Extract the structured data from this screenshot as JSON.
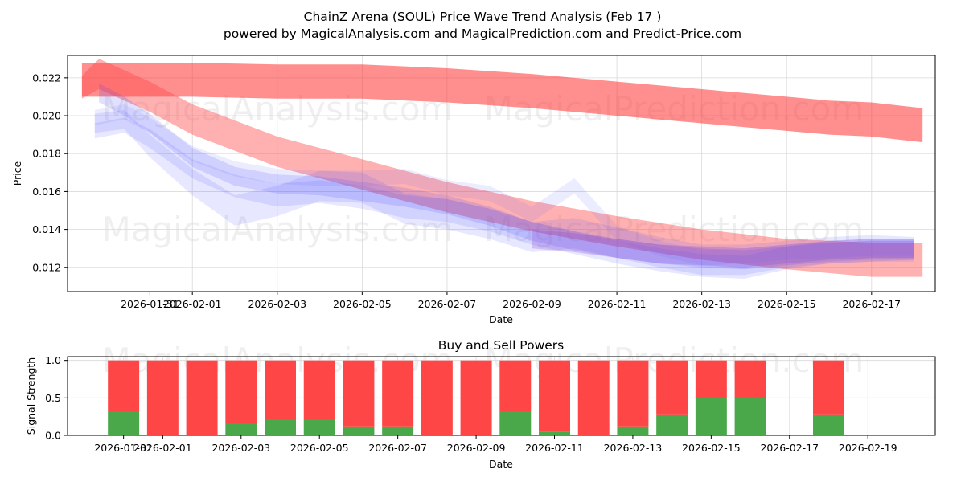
{
  "chart_data": [
    {
      "type": "area",
      "title": "ChainZ Arena (SOUL) Price Wave Trend Analysis (Feb 17 )",
      "subtitle": "powered by MagicalAnalysis.com and MagicalPrediction.com and Predict-Price.com",
      "xlabel": "Date",
      "ylabel": "Price",
      "ylim": [
        0.01072,
        0.02318
      ],
      "yticks": [
        0.012,
        0.014,
        0.016,
        0.018,
        0.02,
        0.022
      ],
      "ytick_labels": [
        "0.012",
        "0.014",
        "0.016",
        "0.018",
        "0.020",
        "0.022"
      ],
      "xticks": [
        0,
        1,
        3,
        5,
        7,
        9,
        11,
        13,
        15,
        17
      ],
      "xtick_labels": [
        "2026-01-31",
        "2026-02-01",
        "2026-02-03",
        "2026-02-05",
        "2026-02-07",
        "2026-02-09",
        "2026-02-11",
        "2026-02-13",
        "2026-02-15",
        "2026-02-17"
      ],
      "xlim": [
        -1.94,
        18.5
      ],
      "grid": true,
      "watermarks": [
        "MagicalAnalysis.com",
        "MagicalPrediction.com",
        "MagicalAnalysis.com",
        "MagicalPrediction.com"
      ],
      "bands": [
        {
          "name": "red-upper",
          "color": "#ff3333",
          "opacity": 0.55,
          "x": [
            -1.6,
            0,
            1,
            3,
            5,
            7,
            9,
            11,
            13,
            15,
            16,
            17,
            18.2
          ],
          "center": [
            0.0219,
            0.0219,
            0.0219,
            0.0218,
            0.0218,
            0.0216,
            0.0213,
            0.0209,
            0.0205,
            0.0201,
            0.0199,
            0.0198,
            0.0195
          ],
          "half": [
            0.0009,
            0.0009,
            0.0009,
            0.0009,
            0.0009,
            0.0009,
            0.0009,
            0.0009,
            0.0009,
            0.0009,
            0.0009,
            0.0009,
            0.0009
          ]
        },
        {
          "name": "red-lower",
          "color": "#ff4444",
          "opacity": 0.42,
          "x": [
            -1.6,
            -1.2,
            0,
            1,
            3,
            5,
            7,
            9,
            11,
            13,
            15,
            17,
            18.2
          ],
          "center": [
            0.0215,
            0.0222,
            0.021,
            0.0198,
            0.0181,
            0.0169,
            0.0157,
            0.0147,
            0.0139,
            0.0132,
            0.0127,
            0.0124,
            0.0124
          ],
          "half": [
            0.0006,
            0.0008,
            0.0008,
            0.0008,
            0.0008,
            0.0008,
            0.0008,
            0.0008,
            0.0008,
            0.0008,
            0.0008,
            0.0009,
            0.0009
          ]
        },
        {
          "name": "blue-wave-1",
          "color": "#4444ff",
          "opacity": 0.13,
          "x": [
            -1.3,
            -0.6,
            0,
            1,
            2,
            3,
            4,
            5,
            6,
            7,
            8,
            9,
            10,
            11,
            12,
            13,
            14,
            15,
            16,
            17,
            18
          ],
          "center": [
            0.0196,
            0.0198,
            0.0184,
            0.0165,
            0.015,
            0.0155,
            0.0163,
            0.0162,
            0.0151,
            0.0148,
            0.0143,
            0.0136,
            0.0138,
            0.0133,
            0.0128,
            0.0124,
            0.0124,
            0.0127,
            0.0129,
            0.013,
            0.013
          ],
          "half": [
            0.0005,
            0.0005,
            0.0006,
            0.0007,
            0.0008,
            0.0008,
            0.0008,
            0.0008,
            0.0008,
            0.0008,
            0.0008,
            0.0008,
            0.0008,
            0.0008,
            0.0008,
            0.0008,
            0.0008,
            0.0007,
            0.0007,
            0.0007,
            0.0006
          ]
        },
        {
          "name": "blue-wave-2",
          "color": "#5555ff",
          "opacity": 0.14,
          "x": [
            -1.3,
            -0.6,
            0,
            1,
            2,
            3,
            4,
            5,
            6,
            7,
            8,
            9,
            10,
            11,
            12,
            13,
            14,
            15,
            16,
            17,
            18
          ],
          "center": [
            0.0192,
            0.0195,
            0.0188,
            0.0172,
            0.0163,
            0.0158,
            0.016,
            0.0157,
            0.0152,
            0.015,
            0.0145,
            0.0138,
            0.0133,
            0.0128,
            0.0124,
            0.0121,
            0.012,
            0.0125,
            0.0128,
            0.0129,
            0.0129
          ],
          "half": [
            0.0004,
            0.0004,
            0.0005,
            0.0005,
            0.0006,
            0.0006,
            0.0006,
            0.0006,
            0.0006,
            0.0006,
            0.0006,
            0.0006,
            0.0006,
            0.0006,
            0.0006,
            0.0006,
            0.0006,
            0.0006,
            0.0006,
            0.0006,
            0.0006
          ]
        },
        {
          "name": "blue-wave-3",
          "color": "#3333ff",
          "opacity": 0.15,
          "x": [
            -1.2,
            -0.6,
            0,
            1,
            2,
            3,
            4,
            5,
            6,
            7,
            8,
            9,
            10,
            11,
            12,
            13,
            14,
            15,
            16,
            17,
            18
          ],
          "center": [
            0.0212,
            0.0205,
            0.0196,
            0.0178,
            0.0168,
            0.0164,
            0.0163,
            0.016,
            0.0157,
            0.0153,
            0.0147,
            0.0139,
            0.0134,
            0.013,
            0.0127,
            0.0125,
            0.0124,
            0.0126,
            0.0128,
            0.0129,
            0.0129
          ],
          "half": [
            0.0005,
            0.0005,
            0.0005,
            0.0005,
            0.0005,
            0.0005,
            0.0005,
            0.0005,
            0.0005,
            0.0005,
            0.0005,
            0.0005,
            0.0005,
            0.0005,
            0.0005,
            0.0005,
            0.0005,
            0.0005,
            0.0005,
            0.0005,
            0.0005
          ]
        },
        {
          "name": "blue-wave-4",
          "color": "#6666ff",
          "opacity": 0.12,
          "x": [
            -1.3,
            -0.6,
            0,
            1,
            2,
            3,
            4,
            5,
            6,
            7,
            8,
            9,
            10,
            11,
            12,
            13,
            14,
            15,
            16,
            17,
            18
          ],
          "center": [
            0.0199,
            0.0202,
            0.0195,
            0.018,
            0.0172,
            0.0168,
            0.0167,
            0.0167,
            0.0168,
            0.0162,
            0.0159,
            0.0148,
            0.0163,
            0.0138,
            0.013,
            0.0125,
            0.0126,
            0.0128,
            0.0129,
            0.013,
            0.013
          ],
          "half": [
            0.0004,
            0.0004,
            0.0004,
            0.0004,
            0.0004,
            0.0004,
            0.0004,
            0.0004,
            0.0004,
            0.0004,
            0.0004,
            0.0004,
            0.0004,
            0.0004,
            0.0004,
            0.0004,
            0.0004,
            0.0004,
            0.0004,
            0.0004,
            0.0004
          ]
        },
        {
          "name": "purple-wave",
          "color": "#8844cc",
          "opacity": 0.25,
          "x": [
            9,
            10,
            11,
            12,
            13,
            14,
            15,
            16,
            17,
            18
          ],
          "center": [
            0.0135,
            0.0133,
            0.013,
            0.0127,
            0.0126,
            0.0125,
            0.0127,
            0.0129,
            0.013,
            0.013
          ],
          "half": [
            0.0005,
            0.0005,
            0.0005,
            0.0005,
            0.0005,
            0.0005,
            0.0005,
            0.0005,
            0.0005,
            0.0005
          ]
        }
      ]
    },
    {
      "type": "bar",
      "title": "Buy and Sell Powers",
      "xlabel": "Date",
      "ylabel": "Signal Strength",
      "ylim": [
        0,
        1.05
      ],
      "yticks": [
        0,
        0.5,
        1
      ],
      "ytick_labels": [
        "0.0",
        "0.5",
        "1.0"
      ],
      "xticks": [
        0,
        1,
        3,
        5,
        7,
        9,
        11,
        13,
        15,
        17,
        19
      ],
      "xtick_labels": [
        "2026-01-31",
        "2026-02-01",
        "2026-02-03",
        "2026-02-05",
        "2026-02-07",
        "2026-02-09",
        "2026-02-11",
        "2026-02-13",
        "2026-02-15",
        "2026-02-17",
        "2026-02-19"
      ],
      "xlim": [
        -1.43,
        20.72
      ],
      "grid": true,
      "watermarks": [
        "MagicalAnalysis.com",
        "MagicalPrediction.com"
      ],
      "x": [
        0,
        1,
        2,
        3,
        4,
        5,
        6,
        7,
        8,
        9,
        10,
        11,
        12,
        13,
        14,
        15,
        16,
        18
      ],
      "series": [
        {
          "name": "Buy",
          "color": "#4aa84a",
          "values": [
            0.33,
            0.0,
            0.0,
            0.17,
            0.22,
            0.22,
            0.12,
            0.12,
            0.0,
            0.0,
            0.33,
            0.05,
            0.0,
            0.12,
            0.28,
            0.5,
            0.5,
            0.28
          ]
        },
        {
          "name": "Sell",
          "color": "#ff4646",
          "values": [
            0.67,
            1.0,
            1.0,
            0.83,
            0.78,
            0.78,
            0.88,
            0.88,
            1.0,
            1.0,
            0.67,
            0.95,
            1.0,
            0.88,
            0.72,
            0.5,
            0.5,
            0.72
          ]
        }
      ]
    }
  ]
}
